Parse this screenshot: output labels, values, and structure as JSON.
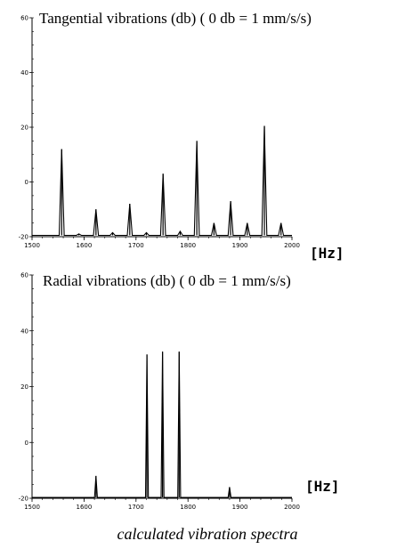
{
  "chart_data": [
    {
      "type": "line",
      "title": "Tangential vibrations (db) ( 0 db = 1 mm/s/s)",
      "xlabel": "[Hz]",
      "ylabel": "",
      "xlim": [
        1500,
        2000
      ],
      "ylim": [
        -20,
        60
      ],
      "x_ticks": [
        1500,
        1600,
        1700,
        1800,
        1900,
        2000
      ],
      "y_ticks": [
        -20,
        0,
        20,
        40,
        60
      ],
      "grid": false,
      "series": [
        {
          "x": [
            1518,
            1557,
            1590,
            1623,
            1655,
            1688,
            1720,
            1752,
            1785,
            1817,
            1850,
            1882,
            1914,
            1947,
            1979
          ],
          "y": [
            -19.5,
            12,
            -19,
            -10,
            -18.5,
            -8,
            -18.5,
            3,
            -18,
            15,
            -15,
            -7,
            -15,
            20.5,
            -15
          ]
        }
      ]
    },
    {
      "type": "line",
      "title": "Radial vibrations (db) ( 0 db = 1 mm/s/s)",
      "xlabel": "[Hz]",
      "ylabel": "",
      "xlim": [
        1500,
        2000
      ],
      "ylim": [
        -20,
        60
      ],
      "x_ticks": [
        1500,
        1600,
        1700,
        1800,
        1900,
        2000
      ],
      "y_ticks": [
        -20,
        0,
        20,
        40,
        60
      ],
      "grid": false,
      "series": [
        {
          "x": [
            1623,
            1721,
            1751,
            1783,
            1880
          ],
          "y": [
            -12,
            31.5,
            32.5,
            32.5,
            -16
          ]
        }
      ]
    }
  ],
  "caption": "calculated vibration spectra"
}
